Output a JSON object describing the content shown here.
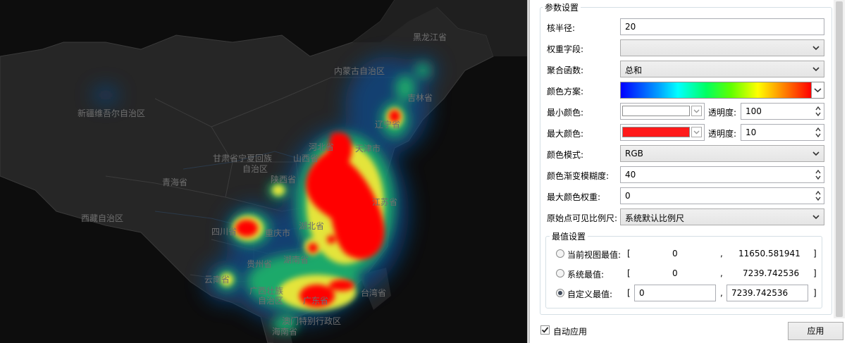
{
  "map": {
    "labels": [
      "黑龙江省",
      "内蒙古自治区",
      "新疆维吾尔自治区",
      "吉林省",
      "辽宁省",
      "天津市",
      "河北省",
      "甘肃省宁夏回族",
      "自治区",
      "山西省",
      "青海省",
      "陕西省",
      "西藏自治区",
      "江苏省",
      "四川省",
      "重庆市",
      "湖北省",
      "湖南省",
      "贵州省",
      "云南省",
      "广西壮族",
      "自治区",
      "广东省",
      "澳门特别行政区",
      "台湾省",
      "海南省"
    ]
  },
  "panel": {
    "group_title": "参数设置",
    "kernel_radius_label": "核半径:",
    "kernel_radius_value": "20",
    "weight_field_label": "权重字段:",
    "weight_field_value": "",
    "agg_func_label": "聚合函数:",
    "agg_func_value": "总和",
    "color_scheme_label": "颜色方案:",
    "min_color_label": "最小颜色:",
    "min_color_hex": "#ffffff",
    "transparency_label": "透明度:",
    "min_transparency": "100",
    "max_color_label": "最大颜色:",
    "max_color_hex": "#ff1a1a",
    "max_transparency": "10",
    "color_mode_label": "颜色模式:",
    "color_mode_value": "RGB",
    "blur_label": "颜色渐变模糊度:",
    "blur_value": "40",
    "max_weight_label": "最大颜色权重:",
    "max_weight_value": "0",
    "scale_label": "原始点可见比例尺:",
    "scale_value": "系统默认比例尺",
    "extremum_title": "最值设置",
    "opt_view_label": "当前视图最值:",
    "opt_view_min": "0",
    "opt_view_max": "11650.581941",
    "opt_sys_label": "系统最值:",
    "opt_sys_min": "0",
    "opt_sys_max": "7239.742536",
    "opt_custom_label": "自定义最值:",
    "opt_custom_min": "0",
    "opt_custom_max": "7239.742536",
    "bracket_open": "[",
    "bracket_close": "]",
    "comma": ",",
    "auto_apply_label": "自动应用",
    "apply_button": "应用"
  }
}
